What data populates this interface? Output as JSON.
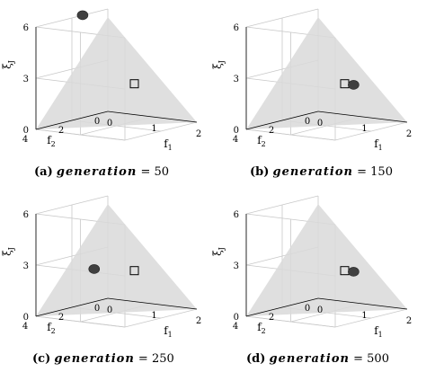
{
  "chart_data": [
    {
      "type": "scatter",
      "caption": {
        "tag": "(a)",
        "variable": "generation",
        "operator": "=",
        "value": "50"
      },
      "axes": {
        "x": {
          "label": "f",
          "subscript": "1",
          "ticks": [
            "0",
            "1",
            "2"
          ],
          "range": [
            0,
            2
          ]
        },
        "y": {
          "label": "f",
          "subscript": "2",
          "ticks": [
            "0",
            "2",
            "4"
          ],
          "range": [
            0,
            4
          ]
        },
        "z": {
          "label": "ξ",
          "subscript": "J",
          "ticks": [
            "0",
            "3",
            "6"
          ],
          "range": [
            0,
            6
          ]
        }
      },
      "grid": true,
      "population_marker": {
        "color": "#404040",
        "f1": 0.2,
        "f2": 1.9,
        "xi": 6.2
      },
      "reference_point": {
        "shape": "square",
        "f1": 1.0,
        "f2": 1.0,
        "xi": 2.2
      }
    },
    {
      "type": "scatter",
      "caption": {
        "tag": "(b)",
        "variable": "generation",
        "operator": "=",
        "value": "150"
      },
      "axes": {
        "x": {
          "label": "f",
          "subscript": "1",
          "ticks": [
            "0",
            "1",
            "2"
          ],
          "range": [
            0,
            2
          ]
        },
        "y": {
          "label": "f",
          "subscript": "2",
          "ticks": [
            "0",
            "2",
            "4"
          ],
          "range": [
            0,
            4
          ]
        },
        "z": {
          "label": "ξ",
          "subscript": "J",
          "ticks": [
            "0",
            "3",
            "6"
          ],
          "range": [
            0,
            6
          ]
        }
      },
      "grid": true,
      "population_marker": {
        "color": "#404040",
        "f1": 1.2,
        "f2": 1.0,
        "xi": 2.2
      },
      "reference_point": {
        "shape": "square",
        "f1": 1.0,
        "f2": 1.0,
        "xi": 2.2
      }
    },
    {
      "type": "scatter",
      "caption": {
        "tag": "(c)",
        "variable": "generation",
        "operator": "=",
        "value": "250"
      },
      "axes": {
        "x": {
          "label": "f",
          "subscript": "1",
          "ticks": [
            "0",
            "1",
            "2"
          ],
          "range": [
            0,
            2
          ]
        },
        "y": {
          "label": "f",
          "subscript": "2",
          "ticks": [
            "0",
            "2",
            "4"
          ],
          "range": [
            0,
            4
          ]
        },
        "z": {
          "label": "ξ",
          "subscript": "J",
          "ticks": [
            "0",
            "3",
            "6"
          ],
          "range": [
            0,
            6
          ]
        }
      },
      "grid": true,
      "population_marker": {
        "color": "#404040",
        "f1": 0.5,
        "f2": 2.0,
        "xi": 2.4
      },
      "reference_point": {
        "shape": "square",
        "f1": 1.0,
        "f2": 1.0,
        "xi": 2.2
      }
    },
    {
      "type": "scatter",
      "caption": {
        "tag": "(d)",
        "variable": "generation",
        "operator": "=",
        "value": "500"
      },
      "axes": {
        "x": {
          "label": "f",
          "subscript": "1",
          "ticks": [
            "0",
            "1",
            "2"
          ],
          "range": [
            0,
            2
          ]
        },
        "y": {
          "label": "f",
          "subscript": "2",
          "ticks": [
            "0",
            "2",
            "4"
          ],
          "range": [
            0,
            4
          ]
        },
        "z": {
          "label": "ξ",
          "subscript": "J",
          "ticks": [
            "0",
            "3",
            "6"
          ],
          "range": [
            0,
            6
          ]
        }
      },
      "grid": true,
      "population_marker": {
        "color": "#404040",
        "f1": 1.2,
        "f2": 1.0,
        "xi": 2.2
      },
      "reference_point": {
        "shape": "square",
        "f1": 1.0,
        "f2": 1.0,
        "xi": 2.2
      }
    }
  ],
  "style": {
    "plane_fill": "#d9d9d9",
    "grid_color": "#c8c8c8",
    "axis_color": "#000000"
  }
}
